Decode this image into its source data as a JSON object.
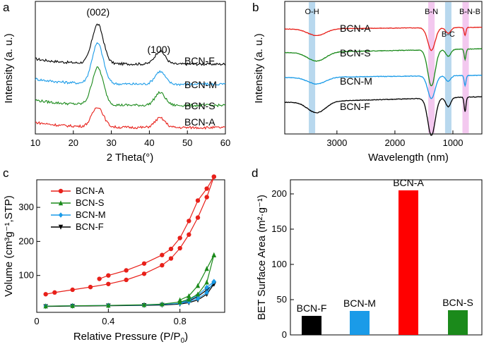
{
  "panels": {
    "a": {
      "letter": "a",
      "chart_data": {
        "type": "line",
        "title": "",
        "xlabel": "2 Theta(°)",
        "ylabel": "Intensity (a. u.)",
        "xlim": [
          10,
          60
        ],
        "xticks": [
          10,
          20,
          30,
          40,
          50,
          60
        ],
        "peak_labels": [
          {
            "text": "(002)",
            "x": 26.5
          },
          {
            "text": "(100)",
            "x": 42.5
          }
        ],
        "series": [
          {
            "name": "BCN-F",
            "color": "#000000",
            "offset": 3.0,
            "peaks": [
              1.85,
              0.62
            ]
          },
          {
            "name": "BCN-M",
            "color": "#1a9be8",
            "offset": 2.05,
            "peaks": [
              1.9,
              0.6
            ]
          },
          {
            "name": "BCN-S",
            "color": "#1b8a1b",
            "offset": 1.05,
            "peaks": [
              1.75,
              0.6
            ]
          },
          {
            "name": "BCN-A",
            "color": "#e8201a",
            "offset": 0.0,
            "peaks": [
              0.95,
              0.45
            ]
          }
        ]
      }
    },
    "b": {
      "letter": "b",
      "chart_data": {
        "type": "line",
        "title": "",
        "xlabel": "Wavelength (nm)",
        "ylabel": "Intensity (a. u.)",
        "xlim": [
          3900,
          500
        ],
        "xticks": [
          3000,
          2000,
          1000
        ],
        "bands": [
          {
            "label": "O-H",
            "center": 3430,
            "width": 110,
            "color": "#b8d8ee"
          },
          {
            "label": "B-N",
            "center": 1370,
            "width": 110,
            "color": "#f3c8ef"
          },
          {
            "label": "B-C",
            "center": 1080,
            "width": 110,
            "color": "#b8d8ee"
          },
          {
            "label": "B-N-B",
            "center": 780,
            "width": 110,
            "color": "#f3c8ef"
          }
        ],
        "series": [
          {
            "name": "BCN-A",
            "color": "#e8201a",
            "offset": 9.3
          },
          {
            "name": "BCN-S",
            "color": "#1b8a1b",
            "offset": 7.2
          },
          {
            "name": "BCN-M",
            "color": "#1a9be8",
            "offset": 5.0
          },
          {
            "name": "BCN-F",
            "color": "#000000",
            "offset": 2.8
          }
        ]
      }
    },
    "c": {
      "letter": "c",
      "chart_data": {
        "type": "line",
        "title": "",
        "xlabel": "Relative Pressure (P/P",
        "xlabel_sub": "0",
        "xlabel_end": ")",
        "ylabel": "Volume (cm³g⁻¹,STP)",
        "xlim": [
          0,
          1.05
        ],
        "ylim": [
          0,
          400
        ],
        "xticks": [
          "0",
          "0.4",
          "0.8"
        ],
        "yticks": [
          "100",
          "200",
          "300"
        ],
        "series": [
          {
            "name": "BCN-A",
            "color": "#e8201a",
            "marker": "circle",
            "adsorption": [
              [
                0.05,
                45
              ],
              [
                0.1,
                50
              ],
              [
                0.2,
                58
              ],
              [
                0.3,
                66
              ],
              [
                0.4,
                75
              ],
              [
                0.5,
                87
              ],
              [
                0.6,
                105
              ],
              [
                0.7,
                130
              ],
              [
                0.75,
                150
              ],
              [
                0.8,
                180
              ],
              [
                0.85,
                220
              ],
              [
                0.9,
                270
              ],
              [
                0.95,
                330
              ],
              [
                0.99,
                390
              ]
            ],
            "desorption": [
              [
                0.99,
                390
              ],
              [
                0.95,
                355
              ],
              [
                0.9,
                320
              ],
              [
                0.85,
                260
              ],
              [
                0.8,
                210
              ],
              [
                0.75,
                178
              ],
              [
                0.7,
                160
              ],
              [
                0.6,
                135
              ],
              [
                0.5,
                115
              ],
              [
                0.4,
                100
              ],
              [
                0.35,
                90
              ]
            ]
          },
          {
            "name": "BCN-S",
            "color": "#1b8a1b",
            "marker": "triangle",
            "adsorption": [
              [
                0.05,
                10
              ],
              [
                0.2,
                11
              ],
              [
                0.4,
                12
              ],
              [
                0.6,
                14
              ],
              [
                0.7,
                16
              ],
              [
                0.8,
                22
              ],
              [
                0.85,
                30
              ],
              [
                0.9,
                45
              ],
              [
                0.95,
                80
              ],
              [
                0.99,
                160
              ]
            ],
            "desorption": [
              [
                0.99,
                160
              ],
              [
                0.95,
                120
              ],
              [
                0.9,
                70
              ],
              [
                0.85,
                40
              ],
              [
                0.8,
                28
              ]
            ]
          },
          {
            "name": "BCN-M",
            "color": "#1a9be8",
            "marker": "diamond",
            "adsorption": [
              [
                0.05,
                10
              ],
              [
                0.2,
                11
              ],
              [
                0.4,
                12
              ],
              [
                0.6,
                13
              ],
              [
                0.7,
                15
              ],
              [
                0.8,
                18
              ],
              [
                0.85,
                23
              ],
              [
                0.9,
                32
              ],
              [
                0.95,
                50
              ],
              [
                0.99,
                82
              ]
            ],
            "desorption": [
              [
                0.99,
                82
              ],
              [
                0.95,
                65
              ],
              [
                0.9,
                42
              ],
              [
                0.85,
                28
              ],
              [
                0.8,
                20
              ]
            ]
          },
          {
            "name": "BCN-F",
            "color": "#000000",
            "marker": "triangle-down",
            "adsorption": [
              [
                0.05,
                9
              ],
              [
                0.2,
                10
              ],
              [
                0.4,
                11
              ],
              [
                0.6,
                12
              ],
              [
                0.7,
                13
              ],
              [
                0.8,
                16
              ],
              [
                0.85,
                20
              ],
              [
                0.9,
                28
              ],
              [
                0.95,
                45
              ],
              [
                0.99,
                75
              ]
            ],
            "desorption": [
              [
                0.99,
                75
              ],
              [
                0.95,
                58
              ],
              [
                0.9,
                38
              ],
              [
                0.85,
                25
              ],
              [
                0.8,
                18
              ]
            ]
          }
        ]
      }
    },
    "d": {
      "letter": "d",
      "chart_data": {
        "type": "bar",
        "title": "",
        "xlabel": "",
        "ylabel": "BET Surface Area (m²·g⁻¹)",
        "ylim": [
          0,
          220
        ],
        "yticks": [
          "0",
          "50",
          "100",
          "150",
          "200"
        ],
        "categories": [
          "BCN-F",
          "BCN-M",
          "BCN-A",
          "BCN-S"
        ],
        "values": [
          27,
          34,
          205,
          35
        ],
        "colors": [
          "#000000",
          "#1a9be8",
          "#ff0000",
          "#1b8a1b"
        ]
      }
    }
  }
}
